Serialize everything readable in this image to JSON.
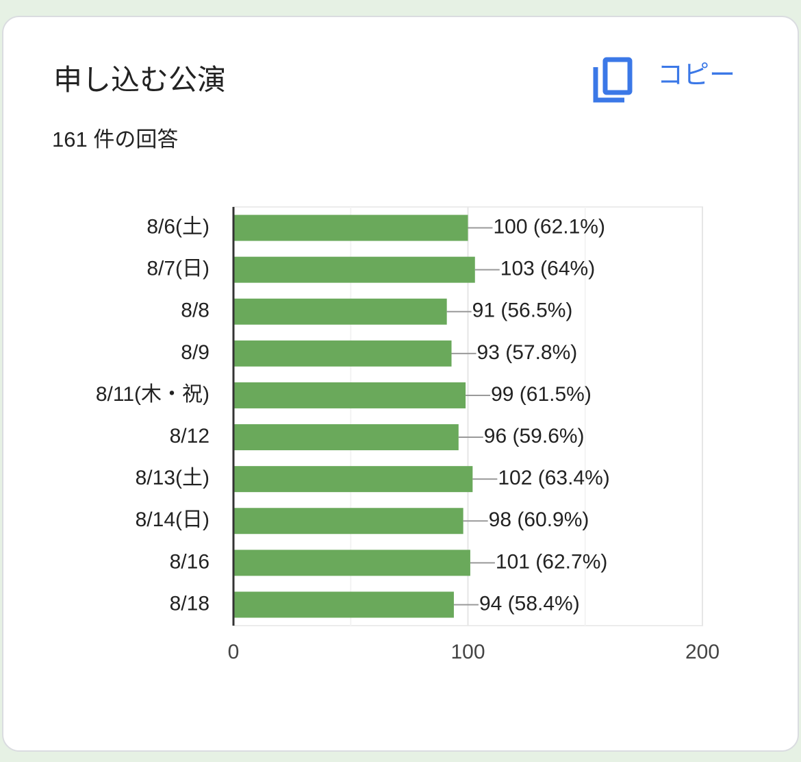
{
  "chart_data": {
    "type": "bar",
    "orientation": "horizontal",
    "title": "申し込む公演",
    "subtitle": "161 件の回答",
    "button": "コピー",
    "categories": [
      "8/6(土)",
      "8/7(日)",
      "8/8",
      "8/9",
      "8/11(木・祝)",
      "8/12",
      "8/13(土)",
      "8/14(日)",
      "8/16",
      "8/18"
    ],
    "values": [
      100,
      103,
      91,
      93,
      99,
      96,
      102,
      98,
      101,
      94
    ],
    "value_labels": [
      "100 (62.1%)",
      "103 (64%)",
      "91 (56.5%)",
      "93 (57.8%)",
      "99 (61.5%)",
      "96 (59.6%)",
      "102 (63.4%)",
      "98 (60.9%)",
      "101 (62.7%)",
      "94 (58.4%)"
    ],
    "color": "#6aa95b",
    "xlim": [
      0,
      200
    ],
    "xticks": [
      0,
      100,
      200
    ],
    "minor_grid": [
      50,
      150
    ],
    "grid": true
  }
}
